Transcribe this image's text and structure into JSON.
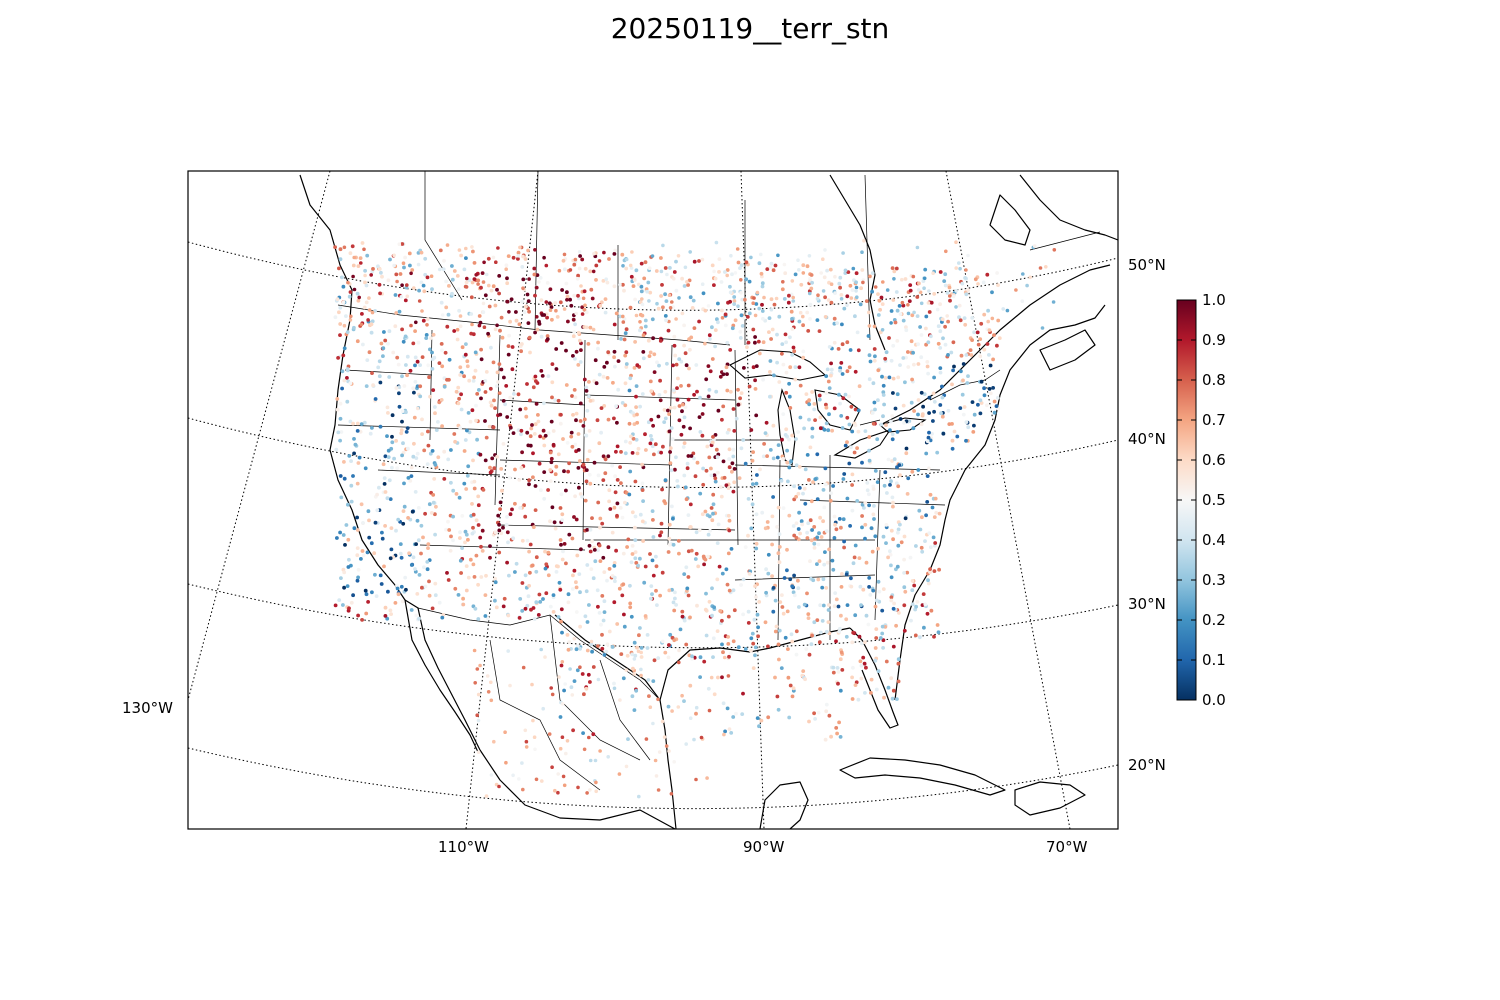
{
  "title": "20250119__terr_stn",
  "map": {
    "projection": "lambert-conformal",
    "lat_labels": [
      "50°N",
      "40°N",
      "30°N",
      "20°N"
    ],
    "lon_labels": [
      "130°W",
      "110°W",
      "90°W",
      "70°W"
    ],
    "graticule_style": "dotted",
    "marker": "station-dot",
    "colormap": "RdBu_r",
    "color_low": "#053061",
    "color_mid": "#f7f7f7",
    "color_high": "#67001f"
  },
  "colorbar": {
    "min": 0.0,
    "max": 1.0,
    "ticks": [
      "0.0",
      "0.1",
      "0.2",
      "0.3",
      "0.4",
      "0.5",
      "0.6",
      "0.7",
      "0.8",
      "0.9",
      "1.0"
    ]
  }
}
